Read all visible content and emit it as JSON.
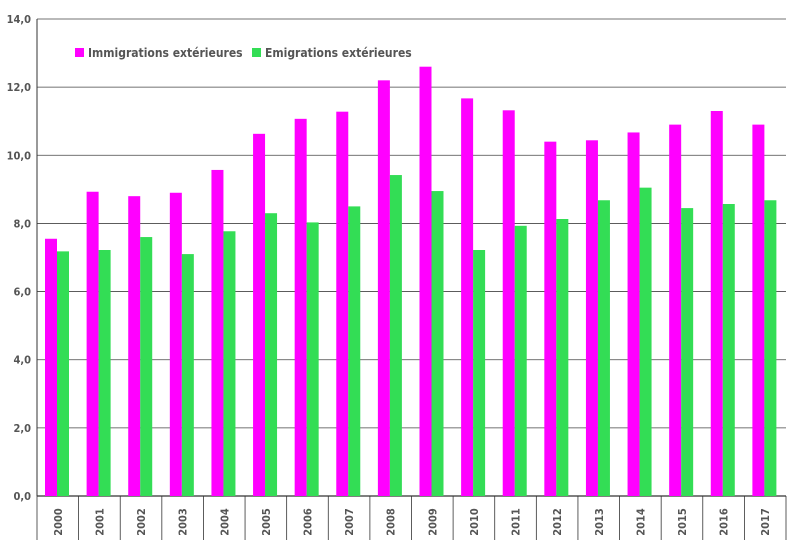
{
  "chart_data": {
    "type": "bar",
    "categories": [
      "2000",
      "2001",
      "2002",
      "2003",
      "2004",
      "2005",
      "2006",
      "2007",
      "2008",
      "2009",
      "2010",
      "2011",
      "2012",
      "2013",
      "2014",
      "2015",
      "2016",
      "2017"
    ],
    "series": [
      {
        "name": "Immigrations extérieures",
        "color": "#ff00ff",
        "values": [
          7.55,
          8.93,
          8.8,
          8.9,
          9.57,
          10.63,
          11.07,
          11.28,
          12.2,
          12.6,
          11.67,
          11.32,
          10.4,
          10.44,
          10.67,
          10.9,
          11.3,
          10.9
        ]
      },
      {
        "name": "Emigrations extérieures",
        "color": "#33dd55",
        "values": [
          7.18,
          7.22,
          7.6,
          7.1,
          7.77,
          8.3,
          8.03,
          8.5,
          9.42,
          8.95,
          7.22,
          7.93,
          8.13,
          8.68,
          9.05,
          8.45,
          8.57,
          8.68
        ]
      }
    ],
    "ylim": [
      0,
      14
    ],
    "yticks": [
      "0,0",
      "2,0",
      "4,0",
      "6,0",
      "8,0",
      "10,0",
      "12,0",
      "14,0"
    ],
    "grid": true,
    "legend_position": "top-left"
  }
}
